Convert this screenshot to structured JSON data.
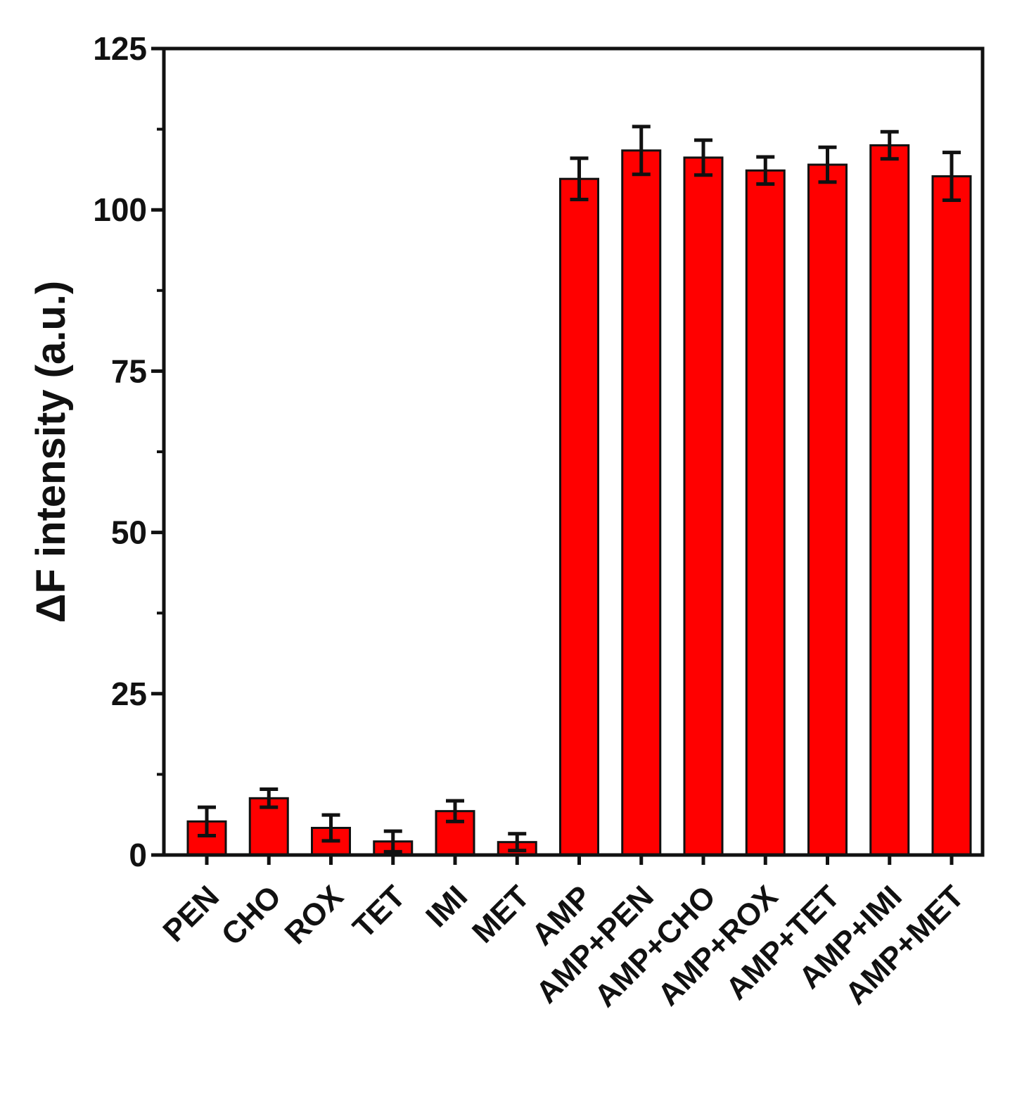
{
  "chart_data": {
    "type": "bar",
    "title": "",
    "xlabel": "",
    "ylabel": "ΔF intensity (a.u.)",
    "ylim": [
      0,
      125
    ],
    "yticks": [
      "0",
      "25",
      "50",
      "75",
      "100",
      "125"
    ],
    "grid": false,
    "categories": [
      "PEN",
      "CHO",
      "ROX",
      "TET",
      "IMI",
      "MET",
      "AMP",
      "AMP+PEN",
      "AMP+CHO",
      "AMP+ROX",
      "AMP+TET",
      "AMP+IMI",
      "AMP+MET"
    ],
    "values": [
      5.2,
      8.8,
      4.2,
      2.1,
      6.8,
      2.0,
      104.8,
      109.2,
      108.1,
      106.1,
      107.0,
      110.0,
      105.2
    ],
    "errors": [
      2.2,
      1.4,
      2.0,
      1.6,
      1.6,
      1.3,
      3.2,
      3.7,
      2.7,
      2.1,
      2.7,
      2.1,
      3.7
    ],
    "bar_color": "#ff0000",
    "edge_color": "#111111"
  }
}
